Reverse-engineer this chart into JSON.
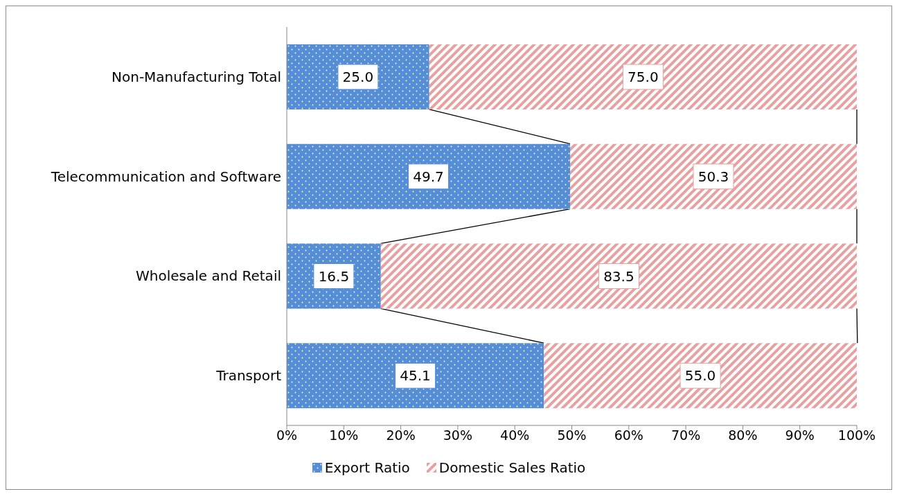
{
  "chart_data": {
    "type": "bar",
    "orientation": "horizontal",
    "stacked": true,
    "categories": [
      "Non-Manufacturing Total",
      "Telecommunication and Software",
      "Wholesale and Retail",
      "Transport"
    ],
    "series": [
      {
        "name": "Export Ratio",
        "color": "#558ed5",
        "values": [
          25.0,
          49.7,
          16.5,
          45.1
        ],
        "value_labels": [
          "25.0",
          "49.7",
          "16.5",
          "45.1"
        ]
      },
      {
        "name": "Domestic Sales Ratio",
        "color": "#e6a1a0",
        "values": [
          75.0,
          50.3,
          83.5,
          55.0
        ],
        "value_labels": [
          "75.0",
          "50.3",
          "83.5",
          "55.0"
        ]
      }
    ],
    "xlim": [
      0,
      100
    ],
    "xticks": [
      {
        "value": 0,
        "label": "0%"
      },
      {
        "value": 10,
        "label": "10%"
      },
      {
        "value": 20,
        "label": "20%"
      },
      {
        "value": 30,
        "label": "30%"
      },
      {
        "value": 40,
        "label": "40%"
      },
      {
        "value": 50,
        "label": "50%"
      },
      {
        "value": 60,
        "label": "60%"
      },
      {
        "value": 70,
        "label": "70%"
      },
      {
        "value": 80,
        "label": "80%"
      },
      {
        "value": 90,
        "label": "90%"
      },
      {
        "value": 100,
        "label": "100%"
      }
    ],
    "legend": "bottom"
  }
}
